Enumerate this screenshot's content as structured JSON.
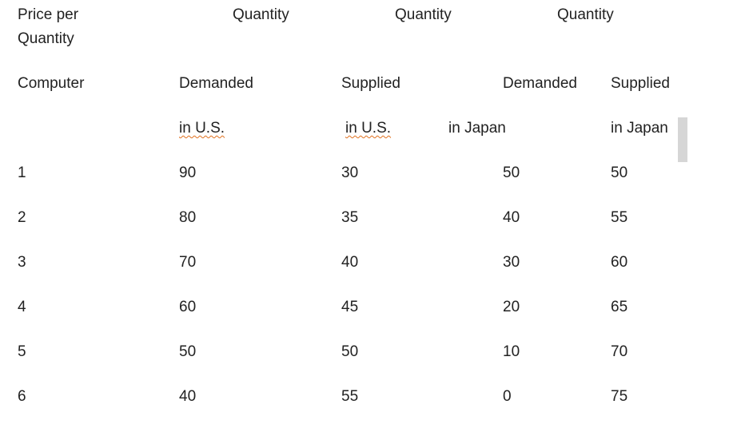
{
  "header": {
    "lines": [
      [
        "Price per",
        "Quantity",
        "Quantity",
        "Quantity"
      ],
      [
        "Quantity"
      ],
      [
        "Computer",
        "Demanded",
        "Supplied",
        "Demanded",
        "Supplied"
      ],
      [
        "in U.S.",
        "in U.S.",
        "in Japan",
        "in Japan"
      ]
    ]
  },
  "table": {
    "rows": [
      [
        1,
        90,
        30,
        50,
        50
      ],
      [
        2,
        80,
        35,
        40,
        55
      ],
      [
        3,
        70,
        40,
        30,
        60
      ],
      [
        4,
        60,
        45,
        20,
        65
      ],
      [
        5,
        50,
        50,
        10,
        70
      ],
      [
        6,
        40,
        55,
        0,
        75
      ]
    ]
  }
}
